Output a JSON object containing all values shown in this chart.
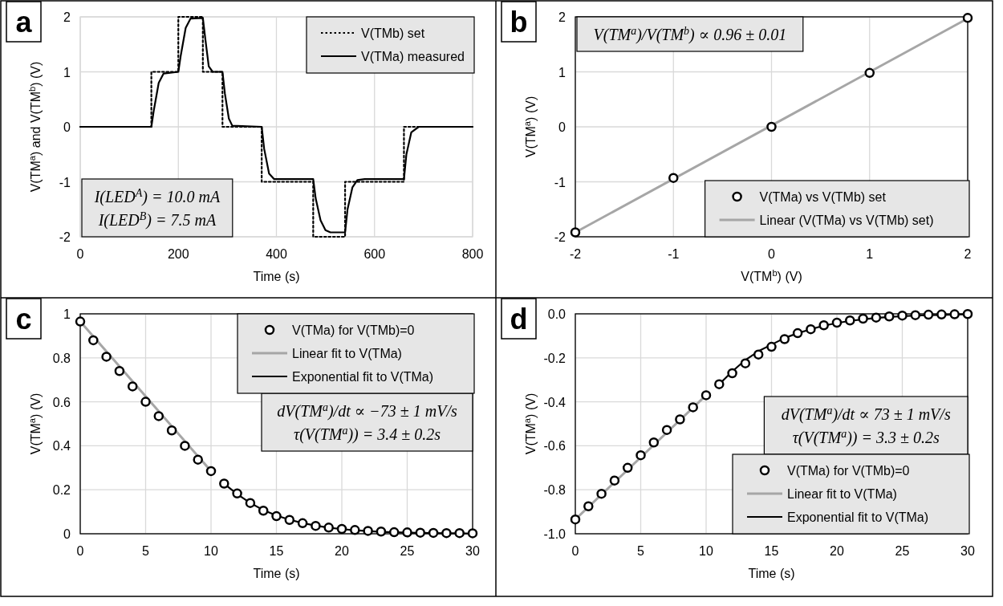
{
  "chart_data": [
    {
      "type": "line",
      "xlabel": "Time (s)",
      "ylabel": "V(TM$^{a}$) and V(TM$^{b}$) (V)",
      "xlim": [
        0,
        800
      ],
      "xticks": [
        0,
        200,
        400,
        600,
        800
      ],
      "ylim": [
        -2,
        2
      ],
      "yticks": [
        -2,
        -1,
        0,
        1,
        2
      ],
      "grid": true,
      "legend": "top right",
      "annotations": [
        "a",
        "I(LED$^{A}$) = 10.0 mA",
        "I(LED$^{B}$) = 7.5 mA"
      ],
      "series": [
        {
          "name": "V(TMb) set",
          "color": "#000000",
          "line_style": "dotted",
          "x": [
            0,
            145,
            145,
            200,
            200,
            250,
            250,
            290,
            290,
            370,
            370,
            475,
            475,
            540,
            540,
            660,
            660,
            800
          ],
          "values": [
            0,
            0,
            1,
            1,
            2,
            2,
            1,
            1,
            0,
            0,
            -1,
            -1,
            -2,
            -2,
            -1,
            -1,
            0,
            0
          ]
        },
        {
          "name": "V(TMa) measured",
          "color": "#000000",
          "line_style": "solid",
          "x": [
            0,
            145,
            150,
            160,
            170,
            200,
            205,
            215,
            225,
            250,
            255,
            262,
            270,
            290,
            295,
            303,
            310,
            370,
            375,
            385,
            395,
            475,
            480,
            490,
            500,
            510,
            540,
            545,
            555,
            565,
            580,
            660,
            665,
            675,
            690,
            800
          ],
          "values": [
            0,
            0,
            0.3,
            0.8,
            0.97,
            1,
            1.3,
            1.8,
            1.97,
            1.98,
            1.6,
            1.1,
            1,
            1,
            0.6,
            0.15,
            0.02,
            0,
            -0.4,
            -0.85,
            -0.95,
            -0.95,
            -1.3,
            -1.7,
            -1.88,
            -1.92,
            -1.92,
            -1.5,
            -1.1,
            -0.97,
            -0.95,
            -0.95,
            -0.5,
            -0.1,
            0,
            0
          ]
        }
      ]
    },
    {
      "type": "scatter",
      "xlabel": "V(TM$^{b}$) (V)",
      "ylabel": "V(TM$^{a}$) (V)",
      "xlim": [
        -2,
        2
      ],
      "xticks": [
        -2,
        -1,
        0,
        1,
        2
      ],
      "ylim": [
        -2,
        2
      ],
      "yticks": [
        -2,
        -1,
        0,
        1,
        2
      ],
      "grid": true,
      "legend": "bottom right",
      "annotations": [
        "b",
        "V(TM$^{a}$)/V(TM$^{b}$) ∝ 0.96 ± 0.01"
      ],
      "series": [
        {
          "name": "V(TMa) vs V(TMb) set",
          "marker": "circle",
          "color": "#000000",
          "x": [
            -2,
            -1,
            0,
            1,
            2
          ],
          "values": [
            -1.92,
            -0.93,
            0,
            0.98,
            1.98
          ]
        },
        {
          "name": "Linear (V(TMa) vs V(TMb) set)",
          "type": "line",
          "color": "#a6a6a6",
          "x": [
            -2,
            2
          ],
          "values": [
            -1.92,
            1.97
          ]
        }
      ]
    },
    {
      "type": "scatter",
      "xlabel": "Time (s)",
      "ylabel": "V(TM$^{a}$) (V)",
      "xlim": [
        0,
        30
      ],
      "xticks": [
        0,
        5,
        10,
        15,
        20,
        25,
        30
      ],
      "ylim": [
        0,
        1
      ],
      "yticks": [
        0,
        0.2,
        0.4,
        0.6,
        0.8,
        1
      ],
      "grid": true,
      "legend": "top right",
      "annotations": [
        "c",
        "dV(TM$^{a}$)/dt ∝ −73 ± 1 mV/s",
        "τ(V(TM$^{a}$)) = 3.4 ± 0.2s"
      ],
      "series": [
        {
          "name": "V(TMa) for V(TMb)=0",
          "marker": "circle",
          "color": "#000000",
          "x": [
            0,
            1,
            2,
            3,
            4,
            5,
            6,
            7,
            8,
            9,
            10,
            11,
            12,
            13,
            14,
            15,
            16,
            17,
            18,
            19,
            20,
            21,
            22,
            23,
            24,
            25,
            26,
            27,
            28,
            29,
            30
          ],
          "values": [
            0.965,
            0.88,
            0.805,
            0.74,
            0.67,
            0.6,
            0.535,
            0.47,
            0.4,
            0.337,
            0.285,
            0.228,
            0.183,
            0.14,
            0.105,
            0.08,
            0.063,
            0.048,
            0.036,
            0.028,
            0.022,
            0.017,
            0.013,
            0.01,
            0.007,
            0.006,
            0.005,
            0.004,
            0.003,
            0.003,
            0.002
          ]
        },
        {
          "name": "Linear fit to V(TMa)",
          "type": "line",
          "color": "#a6a6a6",
          "x": [
            0,
            10
          ],
          "values": [
            0.965,
            0.285
          ]
        },
        {
          "name": "Exponential fit to V(TMa)",
          "type": "line",
          "color": "#000000",
          "x": [
            11,
            12,
            13,
            14,
            15,
            16,
            17,
            18,
            19,
            20,
            21,
            22,
            23,
            24,
            25,
            26,
            27,
            28,
            29,
            30
          ],
          "values": [
            0.228,
            0.18,
            0.14,
            0.108,
            0.083,
            0.064,
            0.049,
            0.037,
            0.028,
            0.021,
            0.016,
            0.012,
            0.009,
            0.007,
            0.005,
            0.004,
            0.003,
            0.002,
            0.002,
            0.001
          ]
        }
      ]
    },
    {
      "type": "scatter",
      "xlabel": "Time (s)",
      "ylabel": "V(TM$^{a}$) (V)",
      "xlim": [
        0,
        30
      ],
      "xticks": [
        0,
        5,
        10,
        15,
        20,
        25,
        30
      ],
      "ylim": [
        -1,
        0
      ],
      "yticks": [
        {
          "value": -1,
          "label": "-1.0"
        },
        {
          "value": -0.8,
          "label": "-0.8"
        },
        {
          "value": -0.6,
          "label": "-0.6"
        },
        {
          "value": -0.4,
          "label": "-0.4"
        },
        {
          "value": -0.2,
          "label": "-0.2"
        },
        {
          "value": 0,
          "label": "0.0"
        }
      ],
      "grid": true,
      "legend": "bottom right",
      "annotations": [
        "d",
        "dV(TM$^{a}$)/dt ∝ 73 ± 1 mV/s",
        "τ(V(TM$^{a}$)) = 3.3 ± 0.2s"
      ],
      "series": [
        {
          "name": "V(TMa) for V(TMb)=0",
          "marker": "circle",
          "color": "#000000",
          "x": [
            0,
            1,
            2,
            3,
            4,
            5,
            6,
            7,
            8,
            9,
            10,
            11,
            12,
            13,
            14,
            15,
            16,
            17,
            18,
            19,
            20,
            21,
            22,
            23,
            24,
            25,
            26,
            27,
            28,
            29,
            30
          ],
          "values": [
            -0.935,
            -0.875,
            -0.818,
            -0.758,
            -0.7,
            -0.643,
            -0.585,
            -0.528,
            -0.48,
            -0.425,
            -0.37,
            -0.32,
            -0.27,
            -0.225,
            -0.185,
            -0.15,
            -0.115,
            -0.088,
            -0.07,
            -0.052,
            -0.04,
            -0.03,
            -0.022,
            -0.017,
            -0.012,
            -0.008,
            -0.006,
            -0.004,
            -0.003,
            -0.002,
            -0.001
          ]
        },
        {
          "name": "Linear fit to V(TMa)",
          "type": "line",
          "color": "#a6a6a6",
          "x": [
            0,
            10
          ],
          "values": [
            -0.935,
            -0.37
          ]
        },
        {
          "name": "Exponential fit to V(TMa)",
          "type": "line",
          "color": "#000000",
          "x": [
            11,
            12,
            13,
            14,
            15,
            16,
            17,
            18,
            19,
            20,
            21,
            22,
            23,
            24,
            25,
            26,
            27,
            28,
            29,
            30
          ],
          "values": [
            -0.32,
            -0.262,
            -0.21,
            -0.17,
            -0.14,
            -0.11,
            -0.088,
            -0.07,
            -0.054,
            -0.042,
            -0.032,
            -0.025,
            -0.019,
            -0.014,
            -0.011,
            -0.008,
            -0.006,
            -0.005,
            -0.003,
            -0.002
          ]
        }
      ]
    }
  ]
}
